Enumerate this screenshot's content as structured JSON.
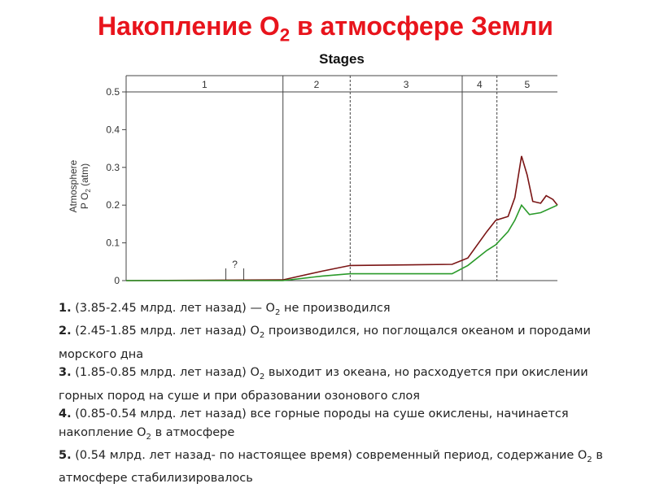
{
  "title_parts": [
    "Накопление O",
    "2",
    " в атмосфере Земли"
  ],
  "chart_data": {
    "type": "line",
    "title": "Stages",
    "y_label": [
      "Atmosphere",
      "P O",
      "2",
      " (atm)"
    ],
    "xlim": [
      3.85,
      0
    ],
    "ylim": [
      0,
      0.5
    ],
    "yticks": [
      0,
      0.1,
      0.2,
      0.3,
      0.4,
      0.5
    ],
    "grid": false,
    "stages": [
      {
        "label": "1",
        "start": 3.85,
        "end": 2.45,
        "style": "solid"
      },
      {
        "label": "2",
        "start": 2.45,
        "end": 1.85,
        "style": "dashed"
      },
      {
        "label": "3",
        "start": 1.85,
        "end": 0.85,
        "style": "solid"
      },
      {
        "label": "4",
        "start": 0.85,
        "end": 0.54,
        "style": "dashed"
      },
      {
        "label": "5",
        "start": 0.54,
        "end": 0,
        "style": "none"
      }
    ],
    "annotation": {
      "text": "?",
      "x": 2.88
    },
    "series": [
      {
        "color": "#7a1414",
        "x": [
          3.85,
          2.45,
          2.1,
          1.85,
          0.94,
          0.8,
          0.63,
          0.55,
          0.44,
          0.38,
          0.32,
          0.27,
          0.22,
          0.15,
          0.1,
          0.04,
          0
        ],
        "values": [
          0,
          0.002,
          0.025,
          0.04,
          0.043,
          0.06,
          0.13,
          0.16,
          0.17,
          0.22,
          0.33,
          0.28,
          0.21,
          0.205,
          0.225,
          0.215,
          0.2
        ]
      },
      {
        "color": "#2a9a2a",
        "x": [
          3.85,
          2.45,
          2.1,
          1.85,
          0.94,
          0.8,
          0.63,
          0.55,
          0.44,
          0.38,
          0.32,
          0.25,
          0.15,
          0
        ],
        "values": [
          0,
          0,
          0.012,
          0.018,
          0.018,
          0.04,
          0.08,
          0.095,
          0.13,
          0.16,
          0.2,
          0.175,
          0.18,
          0.2
        ]
      }
    ]
  },
  "notes": [
    {
      "num": "1.",
      "text": [
        " (3.85-2.45 млрд. лет назад) — O",
        "2",
        " не производился"
      ]
    },
    {
      "num": "2.",
      "text": [
        " (2.45-1.85 млрд. лет назад) O",
        "2",
        " производился, но поглощался океаном и породами морского дна"
      ]
    },
    {
      "num": "3.",
      "text": [
        " (1.85-0.85 млрд. лет назад) O",
        "2",
        " выходит из океана, но расходуется при окислении горных пород на суше и при образовании озонового слоя"
      ]
    },
    {
      "num": "4.",
      "text": [
        " (0.85-0.54 млрд. лет назад) все горные породы на суше окислены, начинается накопление O",
        "2",
        " в атмосфере"
      ]
    },
    {
      "num": "5.",
      "text": [
        " (0.54 млрд. лет назад- по настоящее время) современный период, содержание O",
        "2",
        " в атмосфере стабилизировалось"
      ]
    }
  ]
}
